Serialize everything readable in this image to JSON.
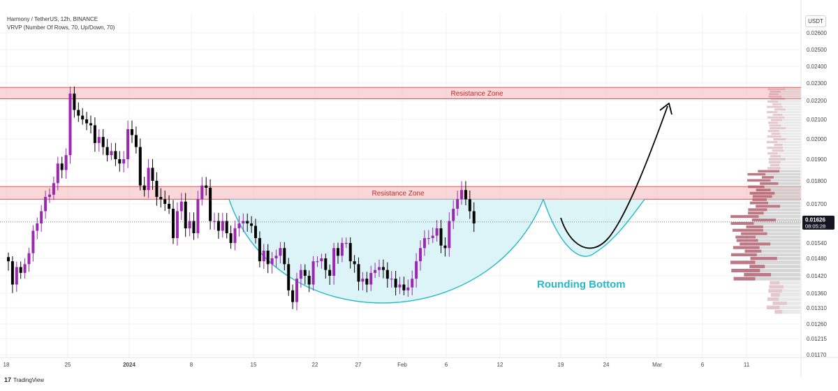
{
  "header": {
    "title": "Harmony / TetherUS, 12h, BINANCE",
    "subtitle": "VRVP (Number Of Rows, 70, Up/Down, 70)"
  },
  "currency_label": "USDT",
  "brand": {
    "mark": "17",
    "name": "TradingView"
  },
  "colors": {
    "bullish": "#9c27b0",
    "bearish": "#000000",
    "resistance_fill": "#f7c8ca",
    "resistance_border": "#e05555",
    "resistance_text": "#c62828",
    "pattern": "#26b8c6",
    "pattern_fill": "#d8f3f6",
    "volume_up": "#c8c8c8",
    "volume_down": "#b06070",
    "price_tag": "#131722"
  },
  "chart_data": {
    "type": "candlestick",
    "symbol": "Harmony / TetherUS",
    "interval": "12h",
    "exchange": "BINANCE",
    "ylim": [
      0.0114,
      0.0263
    ],
    "yticks": [
      "0.02600",
      "0.02500",
      "0.02400",
      "0.02300",
      "0.02200",
      "0.02100",
      "0.02000",
      "0.01900",
      "0.01800",
      "0.01700",
      "0.01540",
      "0.01480",
      "0.01420",
      "0.01360",
      "0.01310",
      "0.01260",
      "0.01215",
      "0.01170"
    ],
    "xticks": [
      "18",
      "25",
      "2024",
      "8",
      "15",
      "22",
      "27",
      "Feb",
      "6",
      "12",
      "19",
      "24",
      "Mar",
      "6",
      "11"
    ],
    "current_price": {
      "value": "0.01626",
      "countdown": "08:05:28"
    },
    "candles_close": [
      0.0147,
      0.0139,
      0.0145,
      0.0143,
      0.0146,
      0.015,
      0.0159,
      0.0162,
      0.0167,
      0.0173,
      0.0174,
      0.0179,
      0.0188,
      0.0185,
      0.0192,
      0.0224,
      0.0215,
      0.0212,
      0.021,
      0.0208,
      0.0207,
      0.0198,
      0.0201,
      0.0196,
      0.0192,
      0.0194,
      0.019,
      0.0188,
      0.019,
      0.0205,
      0.0202,
      0.0196,
      0.0178,
      0.0176,
      0.0186,
      0.018,
      0.0173,
      0.0172,
      0.017,
      0.0168,
      0.0156,
      0.0167,
      0.0171,
      0.016,
      0.0163,
      0.0158,
      0.0172,
      0.0178,
      0.0177,
      0.0163,
      0.0163,
      0.0159,
      0.0163,
      0.0158,
      0.0154,
      0.016,
      0.0162,
      0.0163,
      0.0162,
      0.0161,
      0.0156,
      0.0147,
      0.0151,
      0.0146,
      0.0148,
      0.0149,
      0.0152,
      0.0146,
      0.0137,
      0.0133,
      0.0141,
      0.0144,
      0.0142,
      0.0139,
      0.0147,
      0.0147,
      0.0148,
      0.0144,
      0.0142,
      0.0152,
      0.0149,
      0.0154,
      0.0154,
      0.0147,
      0.0146,
      0.014,
      0.0141,
      0.0139,
      0.0143,
      0.0144,
      0.0145,
      0.0144,
      0.0141,
      0.0141,
      0.0138,
      0.0139,
      0.0137,
      0.0138,
      0.0141,
      0.0147,
      0.0152,
      0.0156,
      0.0156,
      0.0157,
      0.016,
      0.0153,
      0.0152,
      0.0163,
      0.0168,
      0.0172,
      0.0176,
      0.0172,
      0.0167,
      0.0162
    ],
    "resistance_zones": [
      {
        "label": "Resistance Zone",
        "low": 0.0221,
        "high": 0.02275
      },
      {
        "label": "Resistance Zone",
        "low": 0.0172,
        "high": 0.01775
      }
    ],
    "pattern": {
      "label": "Rounding Bottom",
      "rim": 0.0172,
      "bottom": 0.0127
    },
    "annotations": [
      "Resistance Zone",
      "Resistance Zone",
      "Rounding Bottom"
    ]
  }
}
